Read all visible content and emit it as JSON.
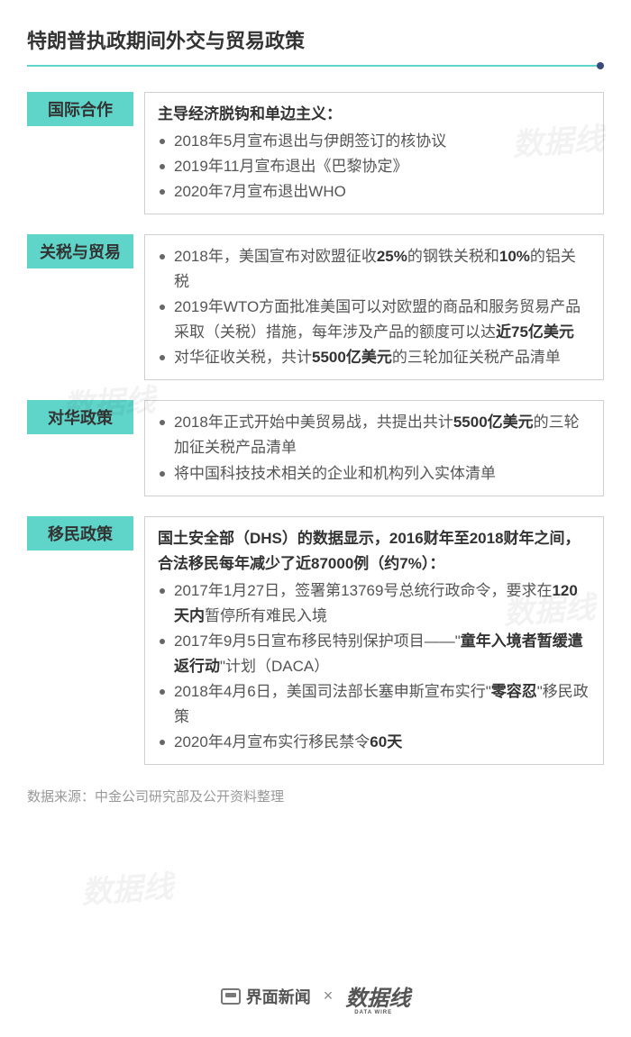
{
  "title": "特朗普执政期间外交与贸易政策",
  "sections": [
    {
      "tag": "国际合作",
      "subhead": "主导经济脱钩和单边主义：",
      "items": [
        "2018年5月宣布退出与伊朗签订的核协议",
        "2019年11月宣布退出《巴黎协定》",
        "2020年7月宣布退出WHO"
      ]
    },
    {
      "tag": "关税与贸易",
      "items_html": [
        "2018年，美国宣布对欧盟征收<b>25%</b>的钢铁关税和<b>10%</b>的铝关税",
        "2019年WTO方面批准美国可以对欧盟的商品和服务贸易产品采取（关税）措施，每年涉及产品的额度可以达<b>近75亿美元</b>",
        "对华征收关税，共计<b>5500亿美元</b>的三轮加征关税产品清单"
      ]
    },
    {
      "tag": "对华政策",
      "items_html": [
        "2018年正式开始中美贸易战，共提出共计<b>5500亿美元</b>的三轮加征关税产品清单",
        "将中国科技技术相关的企业和机构列入实体清单"
      ]
    },
    {
      "tag": "移民政策",
      "subhead": "国土安全部（DHS）的数据显示，2016财年至2018财年之间，合法移民每年减少了近87000例（约7%）：",
      "items_html": [
        "2017年1月27日，签署第13769号总统行政命令，要求在<b>120天内</b>暂停所有难民入境",
        "2017年9月5日宣布移民特别保护项目——\"<b>童年入境者暂缓遣返行动</b>\"计划（DACA）",
        "2018年4月6日，美国司法部长塞申斯宣布实行\"<b>零容忍</b>\"移民政策",
        "2020年4月宣布实行移民禁令<b>60天</b>"
      ]
    }
  ],
  "source_label": "数据来源：中金公司研究部及公开资料整理",
  "footer": {
    "brand1": "界面新闻",
    "separator": "×",
    "brand2": "数据线",
    "brand2_sub": "DATA WIRE"
  },
  "colors": {
    "accent": "#5fd4c9",
    "dot": "#3a4a7a",
    "border": "#d0d0d0",
    "text": "#555",
    "bold": "#333",
    "muted": "#999"
  }
}
